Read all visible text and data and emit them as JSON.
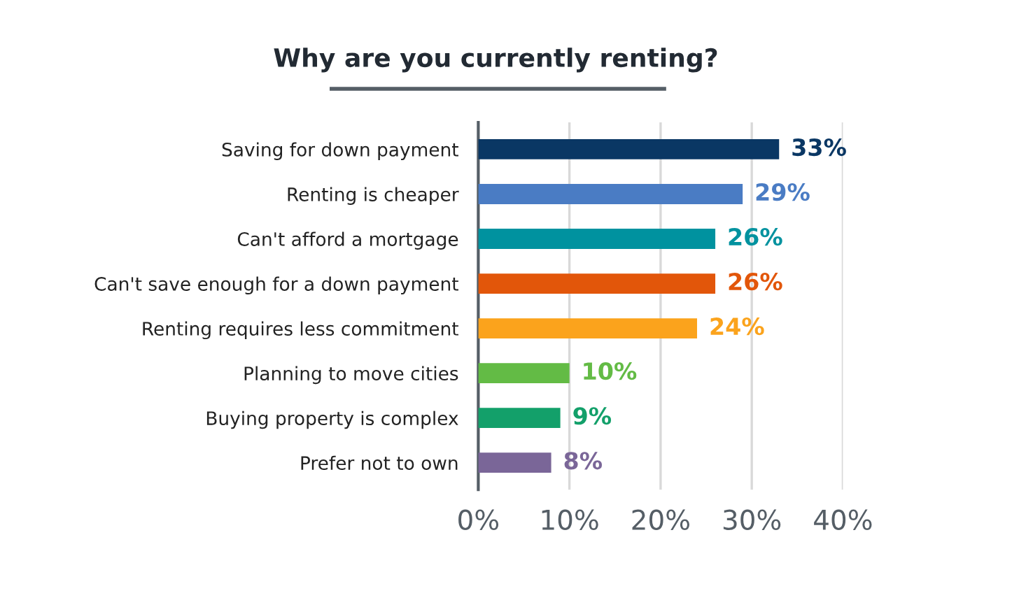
{
  "chart_data": {
    "type": "bar",
    "orientation": "horizontal",
    "title": "Why are you currently renting?",
    "categories": [
      "Saving for down payment",
      "Renting is cheaper",
      "Can't afford a mortgage",
      "Can't save enough for a down payment",
      "Renting requires less commitment",
      "Planning to move cities",
      "Buying property is complex",
      "Prefer not to own"
    ],
    "values": [
      33,
      29,
      26,
      26,
      24,
      10,
      9,
      8
    ],
    "colors": [
      "#0a3764",
      "#4a7cc4",
      "#00929f",
      "#e2560a",
      "#fba31c",
      "#63bb45",
      "#13a06a",
      "#7a6698"
    ],
    "xlim": [
      0,
      40
    ],
    "xticks": [
      {
        "value": 0,
        "label": "0%"
      },
      {
        "value": 10,
        "label": "10%"
      },
      {
        "value": 20,
        "label": "20%"
      },
      {
        "value": 30,
        "label": "30%"
      },
      {
        "value": 40,
        "label": "40%"
      }
    ],
    "value_labels": [
      "33%",
      "29%",
      "26%",
      "26%",
      "24%",
      "10%",
      "9%",
      "8%"
    ],
    "grid": "x",
    "legend": false
  }
}
